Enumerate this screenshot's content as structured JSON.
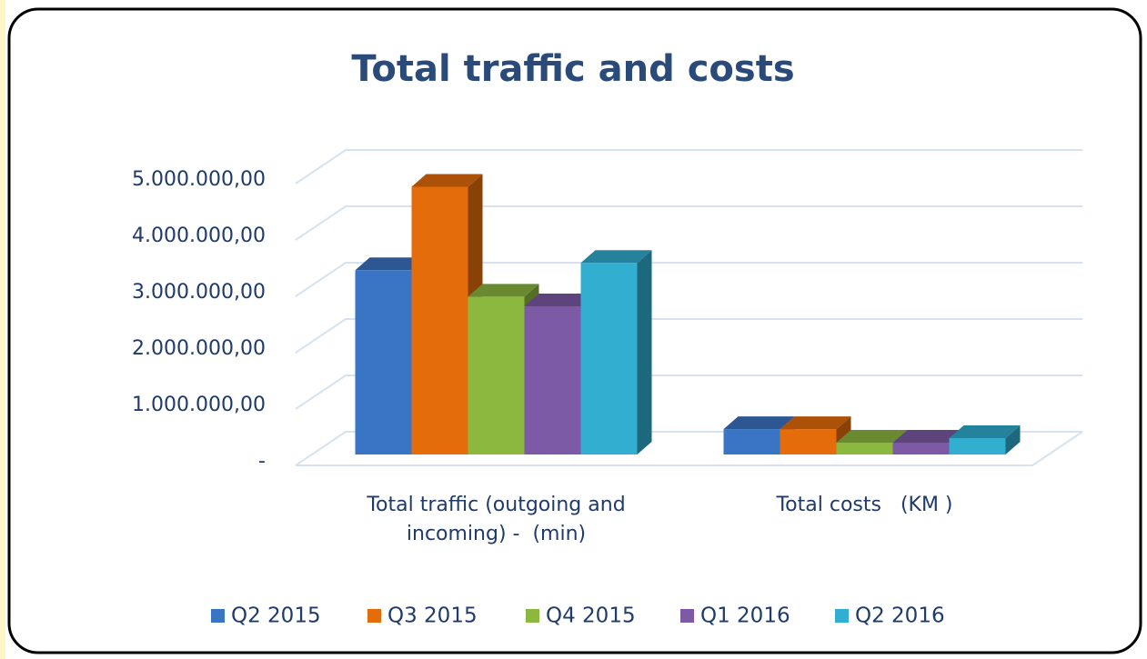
{
  "chart_data": {
    "type": "bar3d",
    "title": "Total traffic and costs",
    "categories": [
      "Total traffic (outgoing and incoming) -  (min)",
      "Total costs   (KM )"
    ],
    "series": [
      {
        "name": "Q2 2015",
        "color": "#3a74c4",
        "values": [
          3270000,
          450000
        ]
      },
      {
        "name": "Q3 2015",
        "color": "#e46c0a",
        "values": [
          4750000,
          450000
        ]
      },
      {
        "name": "Q4 2015",
        "color": "#8cb840",
        "values": [
          2800000,
          210000
        ]
      },
      {
        "name": "Q1 2016",
        "color": "#7d5aa6",
        "values": [
          2630000,
          210000
        ]
      },
      {
        "name": "Q2 2016",
        "color": "#31aed0",
        "values": [
          3400000,
          290000
        ]
      }
    ],
    "ylim": [
      0,
      5000000
    ],
    "yticks": [
      {
        "value": 0,
        "label": "-"
      },
      {
        "value": 1000000,
        "label": "1.000.000,00"
      },
      {
        "value": 2000000,
        "label": "2.000.000,00"
      },
      {
        "value": 3000000,
        "label": "3.000.000,00"
      },
      {
        "value": 4000000,
        "label": "4.000.000,00"
      },
      {
        "value": 5000000,
        "label": "5.000.000,00"
      }
    ],
    "grid": true,
    "legend": "bottom"
  }
}
